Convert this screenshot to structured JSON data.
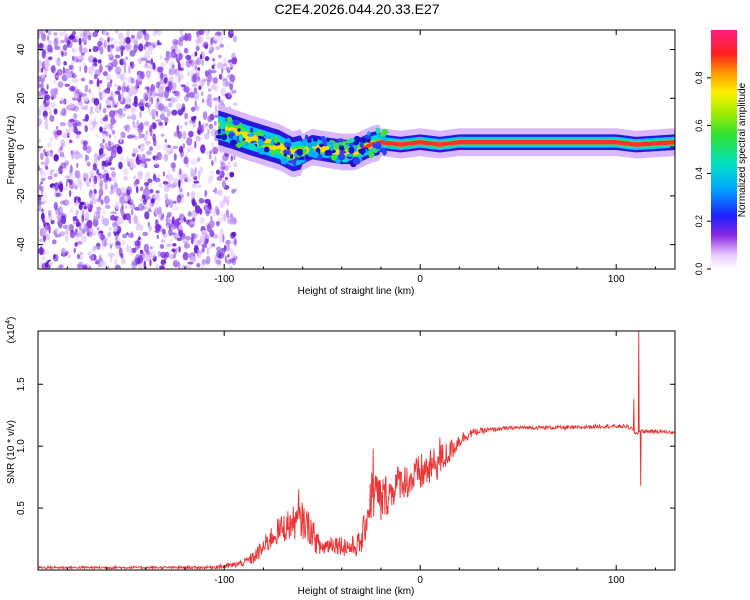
{
  "figure_title": "C2E4.2026.044.20.33.E27",
  "colors": {
    "series": "#ee3333",
    "axes": "#000000",
    "spectrogram_noise": "#7b22e0",
    "band_core": "#ff3030"
  },
  "chart_data": [
    {
      "type": "heatmap",
      "title": "C2E4.2026.044.20.33.E27",
      "xlabel": "Height of straight line (km)",
      "ylabel": "Frequency (Hz)",
      "xlim": [
        -195,
        130
      ],
      "ylim": [
        -50,
        48
      ],
      "xticks": [
        -100,
        0,
        100
      ],
      "xtick_labels": [
        "-100",
        "0",
        "100"
      ],
      "yticks": [
        -40,
        -20,
        0,
        20,
        40
      ],
      "ytick_labels": [
        "-40",
        "-20",
        "0",
        "20",
        "40"
      ],
      "colorbar": {
        "label": "Normalized spectral amplitude",
        "range": [
          0,
          1
        ],
        "ticks": [
          0,
          0.2,
          0.4,
          0.6,
          0.8
        ],
        "tick_labels": [
          "0.0",
          "0.2",
          "0.4",
          "0.6",
          "0.8"
        ]
      },
      "noise_region_x": [
        -195,
        -97
      ],
      "signal_path": {
        "x": [
          -103,
          -95,
          -88,
          -80,
          -72,
          -65,
          -60,
          -55,
          -48,
          -40,
          -33,
          -25,
          -20,
          -10,
          0,
          10,
          20,
          40,
          60,
          85,
          100,
          110,
          130
        ],
        "frequency_hz": [
          8,
          6,
          4,
          2,
          0,
          -3,
          -2,
          0,
          -1,
          -2,
          -2,
          1,
          2,
          1,
          2,
          1,
          2,
          2,
          2,
          2,
          2,
          1,
          2
        ]
      }
    },
    {
      "type": "line",
      "xlabel": "Height of straight line (km)",
      "ylabel": "SNR (10 * v/v)",
      "y_multiplier_label": "(x10",
      "y_multiplier_exp": "4",
      "y_multiplier_close": ")",
      "xlim": [
        -195,
        130
      ],
      "ylim": [
        0,
        1.93
      ],
      "xticks": [
        -100,
        0,
        100
      ],
      "xtick_labels": [
        "-100",
        "0",
        "100"
      ],
      "yticks": [
        0.5,
        1.0,
        1.5
      ],
      "ytick_labels": [
        "0.5",
        "1.0",
        "1.5"
      ],
      "series": [
        {
          "name": "SNR",
          "envelope_x": [
            -195,
            -110,
            -100,
            -95,
            -90,
            -85,
            -80,
            -75,
            -70,
            -65,
            -60,
            -57,
            -55,
            -52,
            -50,
            -45,
            -40,
            -35,
            -30,
            -27,
            -25,
            -22,
            -20,
            -18,
            -15,
            -12,
            -10,
            -5,
            0,
            5,
            10,
            15,
            20,
            25,
            30,
            40,
            50,
            60,
            70,
            80,
            90,
            100,
            105,
            108,
            110,
            112,
            115,
            120,
            130
          ],
          "envelope_y": [
            0.02,
            0.02,
            0.03,
            0.04,
            0.06,
            0.1,
            0.18,
            0.28,
            0.34,
            0.38,
            0.4,
            0.35,
            0.3,
            0.2,
            0.18,
            0.22,
            0.2,
            0.18,
            0.22,
            0.45,
            0.6,
            0.62,
            0.55,
            0.6,
            0.62,
            0.7,
            0.72,
            0.72,
            0.78,
            0.82,
            0.88,
            0.95,
            1.05,
            1.1,
            1.12,
            1.14,
            1.15,
            1.15,
            1.15,
            1.15,
            1.16,
            1.16,
            1.16,
            1.14,
            1.1,
            1.12,
            1.12,
            1.12,
            1.11
          ],
          "noise_x": [
            -195,
            -110,
            -100,
            -90,
            -80,
            -70,
            -60,
            -55,
            -50,
            -40,
            -30,
            -25,
            -20,
            -15,
            -10,
            0,
            10,
            20,
            30,
            40,
            130
          ],
          "noise_amp": [
            0.01,
            0.01,
            0.02,
            0.03,
            0.08,
            0.12,
            0.15,
            0.12,
            0.08,
            0.08,
            0.1,
            0.22,
            0.2,
            0.15,
            0.14,
            0.16,
            0.14,
            0.06,
            0.025,
            0.015,
            0.015
          ],
          "peaks": [
            {
              "x": -62,
              "y": 0.65
            },
            {
              "x": -24,
              "y": 0.98
            },
            {
              "x": 10,
              "y": 1.07
            },
            {
              "x": 109,
              "y": 1.38
            },
            {
              "x": 111.5,
              "y": 1.93
            },
            {
              "x": 112.5,
              "y": 0.68
            }
          ]
        }
      ]
    }
  ]
}
